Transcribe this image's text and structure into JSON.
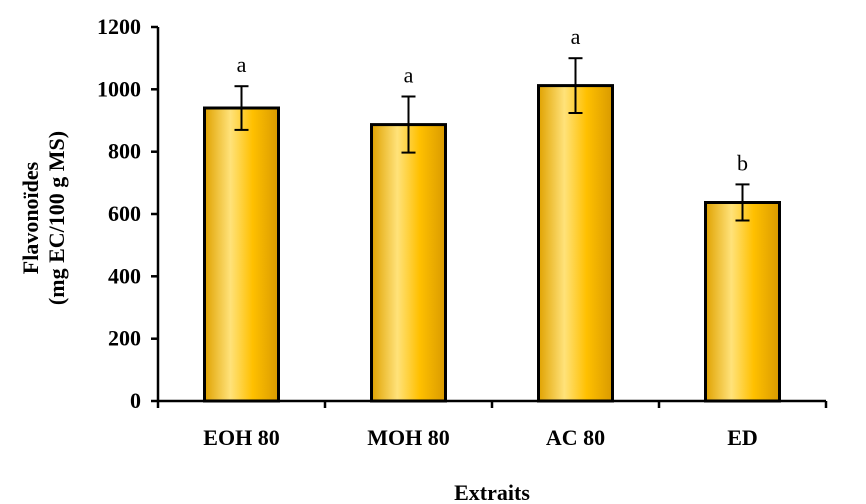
{
  "chart_data": {
    "type": "bar",
    "categories": [
      "EOH 80",
      "MOH 80",
      "AC 80",
      "ED"
    ],
    "values": [
      940,
      887,
      1012,
      637
    ],
    "errors": [
      70,
      90,
      88,
      58
    ],
    "significance_letters": [
      "a",
      "a",
      "a",
      "b"
    ],
    "xlabel": "Extraits",
    "ylabel_lines": [
      "Flavonoïdes",
      "(mg EC/100 g MS)"
    ],
    "ylim": [
      0,
      1200
    ],
    "yticks": [
      0,
      200,
      400,
      600,
      800,
      1000,
      1200
    ],
    "grid": false,
    "colors": {
      "bar_fill": "#FFC000",
      "bar_highlight": "#FFE27A",
      "bar_edge": "#000000",
      "axis": "#000000"
    }
  }
}
